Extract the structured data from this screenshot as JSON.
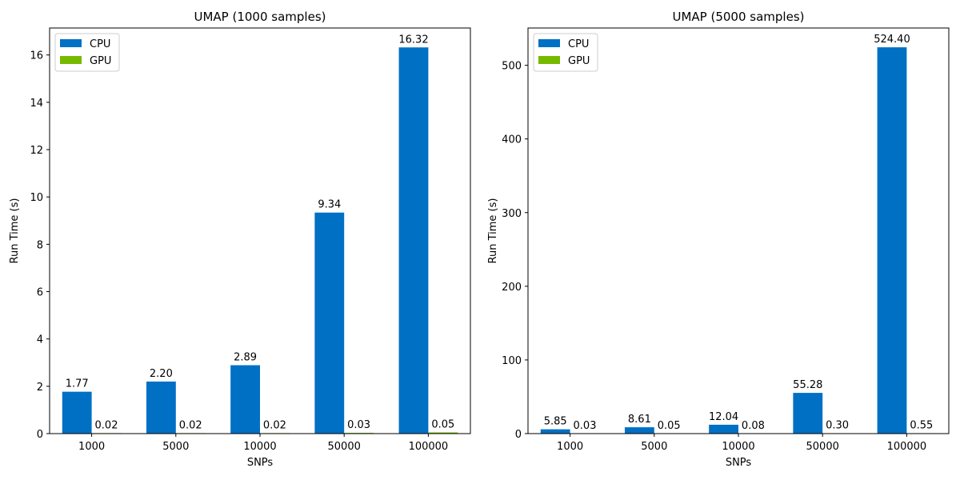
{
  "chart_data": [
    {
      "type": "bar",
      "title": "UMAP (1000 samples)",
      "xlabel": "SNPs",
      "ylabel": "Run Time (s)",
      "categories": [
        "1000",
        "5000",
        "10000",
        "50000",
        "100000"
      ],
      "series": [
        {
          "name": "CPU",
          "color": "#0070c4",
          "values": [
            1.77,
            2.2,
            2.89,
            9.34,
            16.32
          ],
          "labels": [
            "1.77",
            "2.20",
            "2.89",
            "9.34",
            "16.32"
          ]
        },
        {
          "name": "GPU",
          "color": "#76b900",
          "values": [
            0.02,
            0.02,
            0.02,
            0.03,
            0.05
          ],
          "labels": [
            "0.02",
            "0.02",
            "0.02",
            "0.03",
            "0.05"
          ]
        }
      ],
      "ylim": [
        0,
        17.14
      ],
      "yticks": [
        0,
        2,
        4,
        6,
        8,
        10,
        12,
        14,
        16
      ],
      "legend": "top-left",
      "grid": false
    },
    {
      "type": "bar",
      "title": "UMAP (5000 samples)",
      "xlabel": "SNPs",
      "ylabel": "Run Time (s)",
      "categories": [
        "1000",
        "5000",
        "10000",
        "50000",
        "100000"
      ],
      "series": [
        {
          "name": "CPU",
          "color": "#0070c4",
          "values": [
            5.85,
            8.61,
            12.04,
            55.28,
            524.4
          ],
          "labels": [
            "5.85",
            "8.61",
            "12.04",
            "55.28",
            "524.40"
          ]
        },
        {
          "name": "GPU",
          "color": "#76b900",
          "values": [
            0.03,
            0.05,
            0.08,
            0.3,
            0.55
          ],
          "labels": [
            "0.03",
            "0.05",
            "0.08",
            "0.30",
            "0.55"
          ]
        }
      ],
      "ylim": [
        0,
        550.6
      ],
      "yticks": [
        0,
        100,
        200,
        300,
        400,
        500
      ],
      "legend": "top-left",
      "grid": false
    }
  ]
}
